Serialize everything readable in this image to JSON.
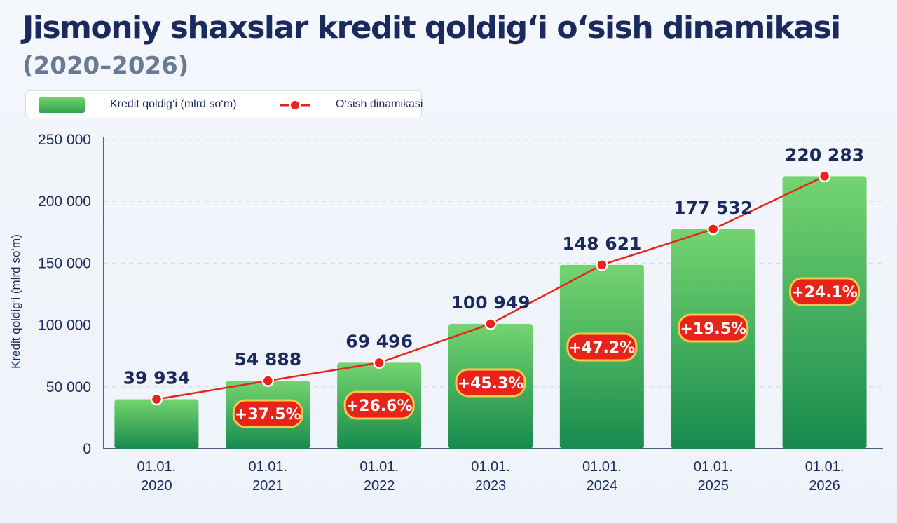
{
  "header": {
    "title": "Jismoniy shaxslar kredit qoldig‘i o‘sish dinamikasi",
    "subtitle": "(2020–2026)"
  },
  "legend": {
    "bar_label": "Kredit qoldig‘i (mlrd so‘m)",
    "line_label": "O‘sish dinamikasi"
  },
  "colors": {
    "title": "#1b2a5c",
    "bar_top": "#74d46f",
    "bar_bottom": "#178a4d",
    "line": "#e8231a",
    "badge_fill": "#e8231a",
    "badge_border": "#f7c948"
  },
  "chart_data": {
    "type": "bar",
    "ylabel": "Kredit qoldig‘i (mlrd so‘m)",
    "ylim": [
      0,
      250000
    ],
    "yticks": [
      0,
      50000,
      100000,
      150000,
      200000,
      250000
    ],
    "ytick_labels": [
      "0",
      "50 000",
      "100 000",
      "150 000",
      "200 000",
      "250 000"
    ],
    "grid": true,
    "legend_position": "top-left",
    "categories": [
      [
        "01.01.",
        "2020"
      ],
      [
        "01.01.",
        "2021"
      ],
      [
        "01.01.",
        "2022"
      ],
      [
        "01.01.",
        "2023"
      ],
      [
        "01.01.",
        "2024"
      ],
      [
        "01.01.",
        "2025"
      ],
      [
        "01.01.",
        "2026"
      ]
    ],
    "series": [
      {
        "name": "Kredit qoldig‘i (mlrd so‘m)",
        "type": "bar",
        "values": [
          39934,
          54888,
          69496,
          100949,
          148621,
          177532,
          220283
        ],
        "labels": [
          "39 934",
          "54 888",
          "69 496",
          "100 949",
          "148 621",
          "177 532",
          "220 283"
        ]
      },
      {
        "name": "O‘sish dinamikasi",
        "type": "line",
        "values": [
          39934,
          54888,
          69496,
          100949,
          148621,
          177532,
          220283
        ]
      }
    ],
    "growth_labels": [
      null,
      "+37.5%",
      "+26.6%",
      "+45.3%",
      "+47.2%",
      "+19.5%",
      "+24.1%"
    ]
  }
}
